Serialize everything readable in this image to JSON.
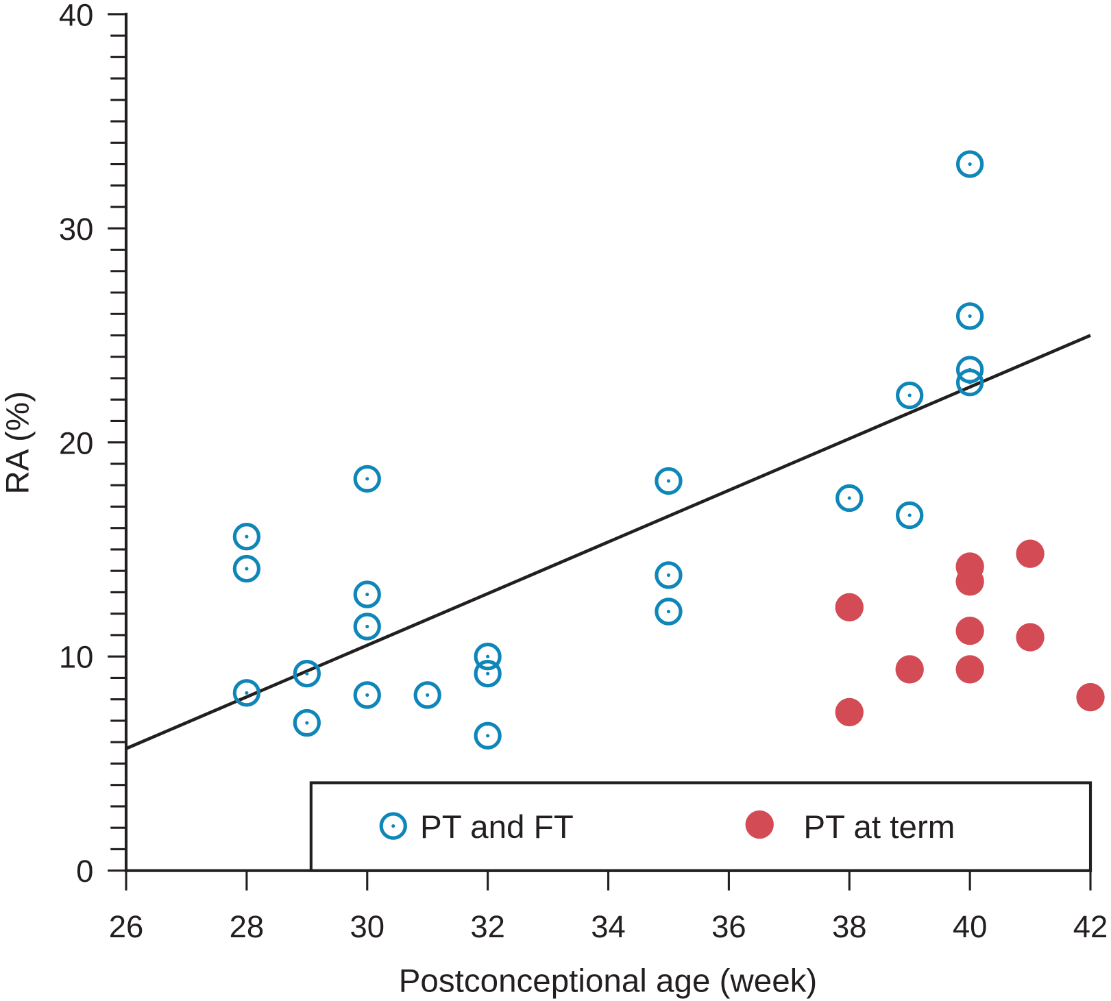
{
  "chart_data": {
    "type": "scatter",
    "title": "",
    "xlabel": "Postconceptional age (week)",
    "ylabel": "RA (%)",
    "xlim": [
      26,
      42
    ],
    "ylim": [
      0,
      40
    ],
    "xticks": [
      26,
      28,
      30,
      32,
      34,
      36,
      38,
      40,
      42
    ],
    "yticks": [
      0,
      10,
      20,
      30,
      40
    ],
    "grid": false,
    "legend_position": "bottom-right",
    "colors": {
      "pt_ft": "#0e86b8",
      "pt_term": "#d24b55",
      "axis": "#231f20"
    },
    "series": [
      {
        "name": "PT and FT",
        "marker": "circle-dot-open",
        "points": [
          [
            28,
            15.6
          ],
          [
            28,
            14.1
          ],
          [
            28,
            8.3
          ],
          [
            29,
            9.2
          ],
          [
            29,
            6.9
          ],
          [
            30,
            18.3
          ],
          [
            30,
            12.9
          ],
          [
            30,
            11.4
          ],
          [
            30,
            8.2
          ],
          [
            31,
            8.2
          ],
          [
            32,
            10.0
          ],
          [
            32,
            9.2
          ],
          [
            32,
            6.3
          ],
          [
            35,
            18.2
          ],
          [
            35,
            13.8
          ],
          [
            35,
            12.1
          ],
          [
            38,
            17.4
          ],
          [
            39,
            22.2
          ],
          [
            39,
            16.6
          ],
          [
            40,
            33.0
          ],
          [
            40,
            25.9
          ],
          [
            40,
            23.4
          ],
          [
            40,
            22.8
          ]
        ]
      },
      {
        "name": "PT at term",
        "marker": "circle-filled",
        "points": [
          [
            38,
            12.3
          ],
          [
            38,
            7.4
          ],
          [
            39,
            9.4
          ],
          [
            40,
            14.2
          ],
          [
            40,
            13.5
          ],
          [
            40,
            11.2
          ],
          [
            40,
            9.4
          ],
          [
            41,
            14.8
          ],
          [
            41,
            10.9
          ],
          [
            42,
            8.1
          ]
        ]
      }
    ],
    "regression_line": {
      "x": [
        26,
        42
      ],
      "y": [
        5.7,
        25.0
      ]
    }
  }
}
